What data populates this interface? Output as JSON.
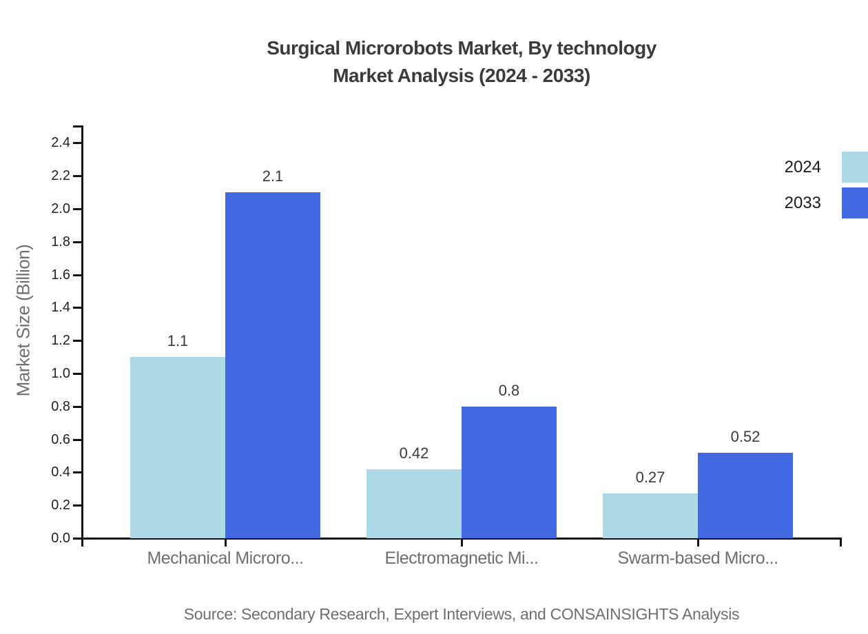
{
  "chart_data": {
    "type": "bar",
    "title": "Surgical Microrobots Market, By technology",
    "subtitle": "Market Analysis (2024 - 2033)",
    "ylabel": "Market Size (Billion)",
    "xlabel": "",
    "categories": [
      "Mechanical Microro...",
      "Electromagnetic Mi...",
      "Swarm-based Micro..."
    ],
    "series": [
      {
        "name": "2024",
        "color": "#ADD8E6",
        "values": [
          1.1,
          0.42,
          0.27
        ]
      },
      {
        "name": "2033",
        "color": "#4169E1",
        "values": [
          2.1,
          0.8,
          0.52
        ]
      }
    ],
    "y_ticks": [
      "0.0",
      "0.2",
      "0.4",
      "0.6",
      "0.8",
      "1.0",
      "1.2",
      "1.4",
      "1.6",
      "1.8",
      "2.0",
      "2.2",
      "2.4"
    ],
    "ylim": [
      0,
      2.5
    ],
    "grid": false,
    "legend_position": "right",
    "source": "Source: Secondary Research, Expert Interviews, and CONSAINSIGHTS Analysis"
  },
  "colors": {
    "background": "#ffffff",
    "axis": "#111111",
    "title_text": "#3b3b3b",
    "tick_label_text": "#222222",
    "value_label_text": "#3a3a3a",
    "muted_text": "#6e6e6e",
    "series_2024": "#ADD8E6",
    "series_2033": "#4169E1"
  }
}
